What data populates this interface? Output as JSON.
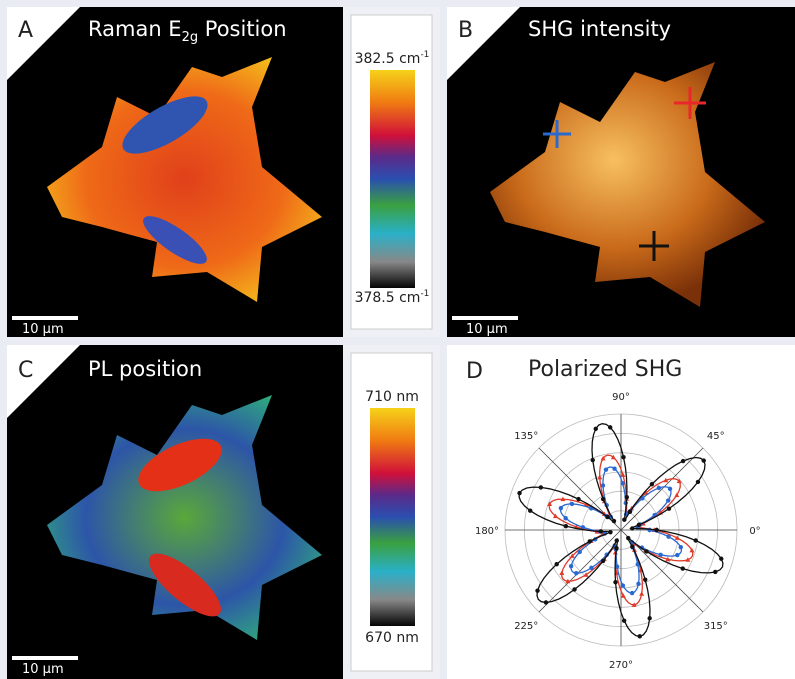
{
  "panels": [
    {
      "letter": "A",
      "title": {
        "main": "Raman E",
        "sub": "2g",
        "rest": " Position"
      },
      "scale_bar": "10 μm",
      "colorbar": {
        "max": {
          "text": "382.5 cm",
          "sup": "-1"
        },
        "min": {
          "text": "378.5 cm",
          "sup": "-1"
        }
      }
    },
    {
      "letter": "B",
      "title": "SHG intensity",
      "scale_bar": "10 μm"
    },
    {
      "letter": "C",
      "title": "PL position",
      "scale_bar": "10 μm",
      "colorbar": {
        "max": "710 nm",
        "min": "670 nm"
      }
    },
    {
      "letter": "D",
      "title": "Polarized SHG",
      "angle_labels": [
        "0°",
        "45°",
        "90°",
        "135°",
        "180°",
        "225°",
        "270°",
        "315°"
      ]
    }
  ]
}
